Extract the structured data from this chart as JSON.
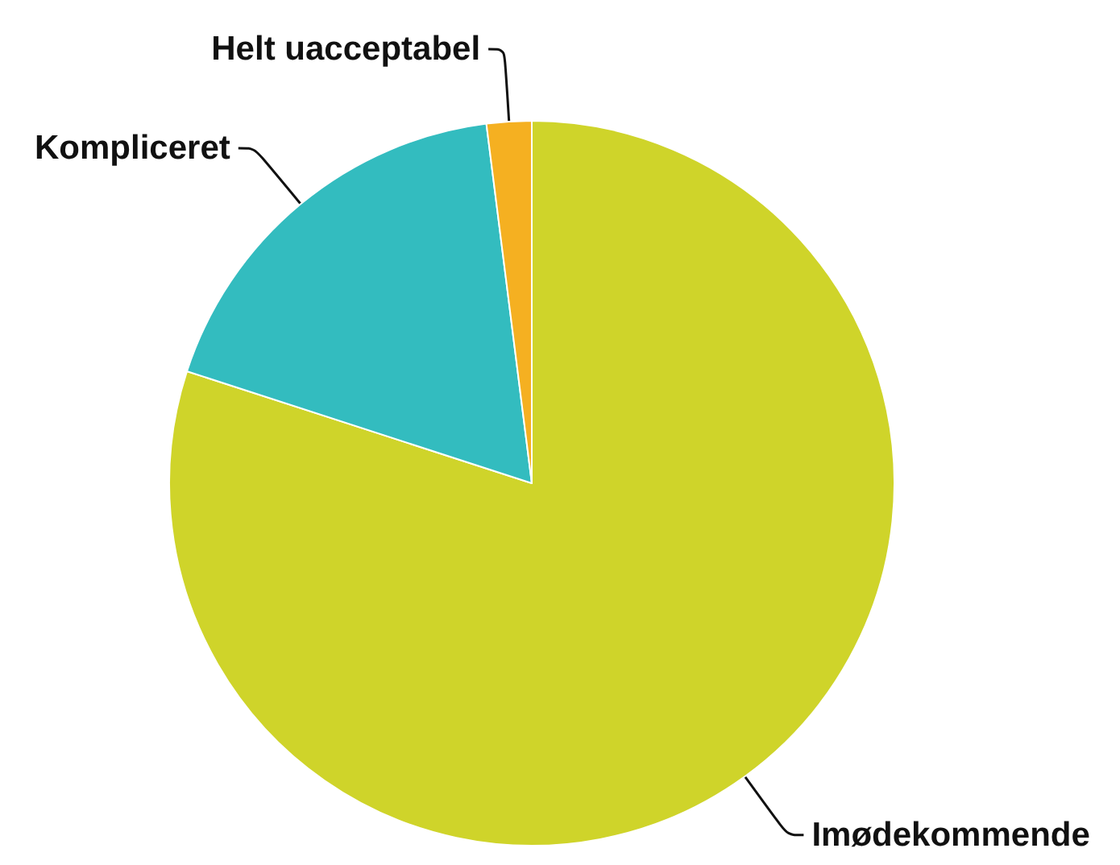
{
  "chart_data": {
    "type": "pie",
    "categories": [
      "Imødekommende",
      "Kompliceret",
      "Helt uacceptabel"
    ],
    "values": [
      80,
      18,
      2
    ],
    "colors": [
      "#cfd42a",
      "#33bcbf",
      "#f5b021"
    ]
  }
}
